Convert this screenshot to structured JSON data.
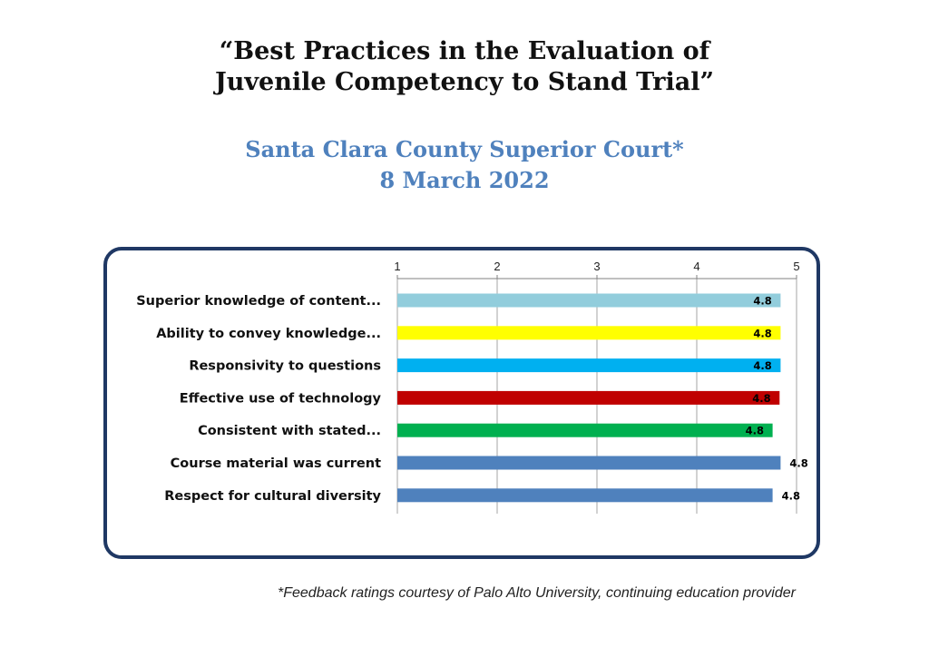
{
  "header": {
    "title_line1": "“Best Practices in the Evaluation of",
    "title_line2": "Juvenile Competency to Stand Trial”",
    "subtitle_line1": "Santa Clara County Superior Court*",
    "subtitle_line2": "8 March 2022"
  },
  "footnote": "*Feedback ratings courtesy of Palo Alto University, continuing education provider",
  "chart_data": {
    "type": "bar",
    "orientation": "horizontal",
    "categories": [
      "Superior knowledge of content...",
      "Ability to convey knowledge...",
      "Responsivity to questions",
      "Effective use of technology",
      "Consistent with stated...",
      "Course material was current",
      "Respect for cultural diversity"
    ],
    "values": [
      4.84,
      4.84,
      4.84,
      4.83,
      4.76,
      4.84,
      4.76
    ],
    "data_labels": [
      "4.8",
      "4.8",
      "4.8",
      "4.8",
      "4.8",
      "4.8",
      "4.8"
    ],
    "colors": [
      "#92cddc",
      "#ffff00",
      "#00b0f0",
      "#c00000",
      "#00b050",
      "#4f81bd",
      "#4f81bd"
    ],
    "xlim": [
      1,
      5
    ],
    "xticks": [
      "1",
      "2",
      "3",
      "4",
      "5"
    ],
    "xaxis_position": "top",
    "grid": true,
    "legend": "none"
  }
}
